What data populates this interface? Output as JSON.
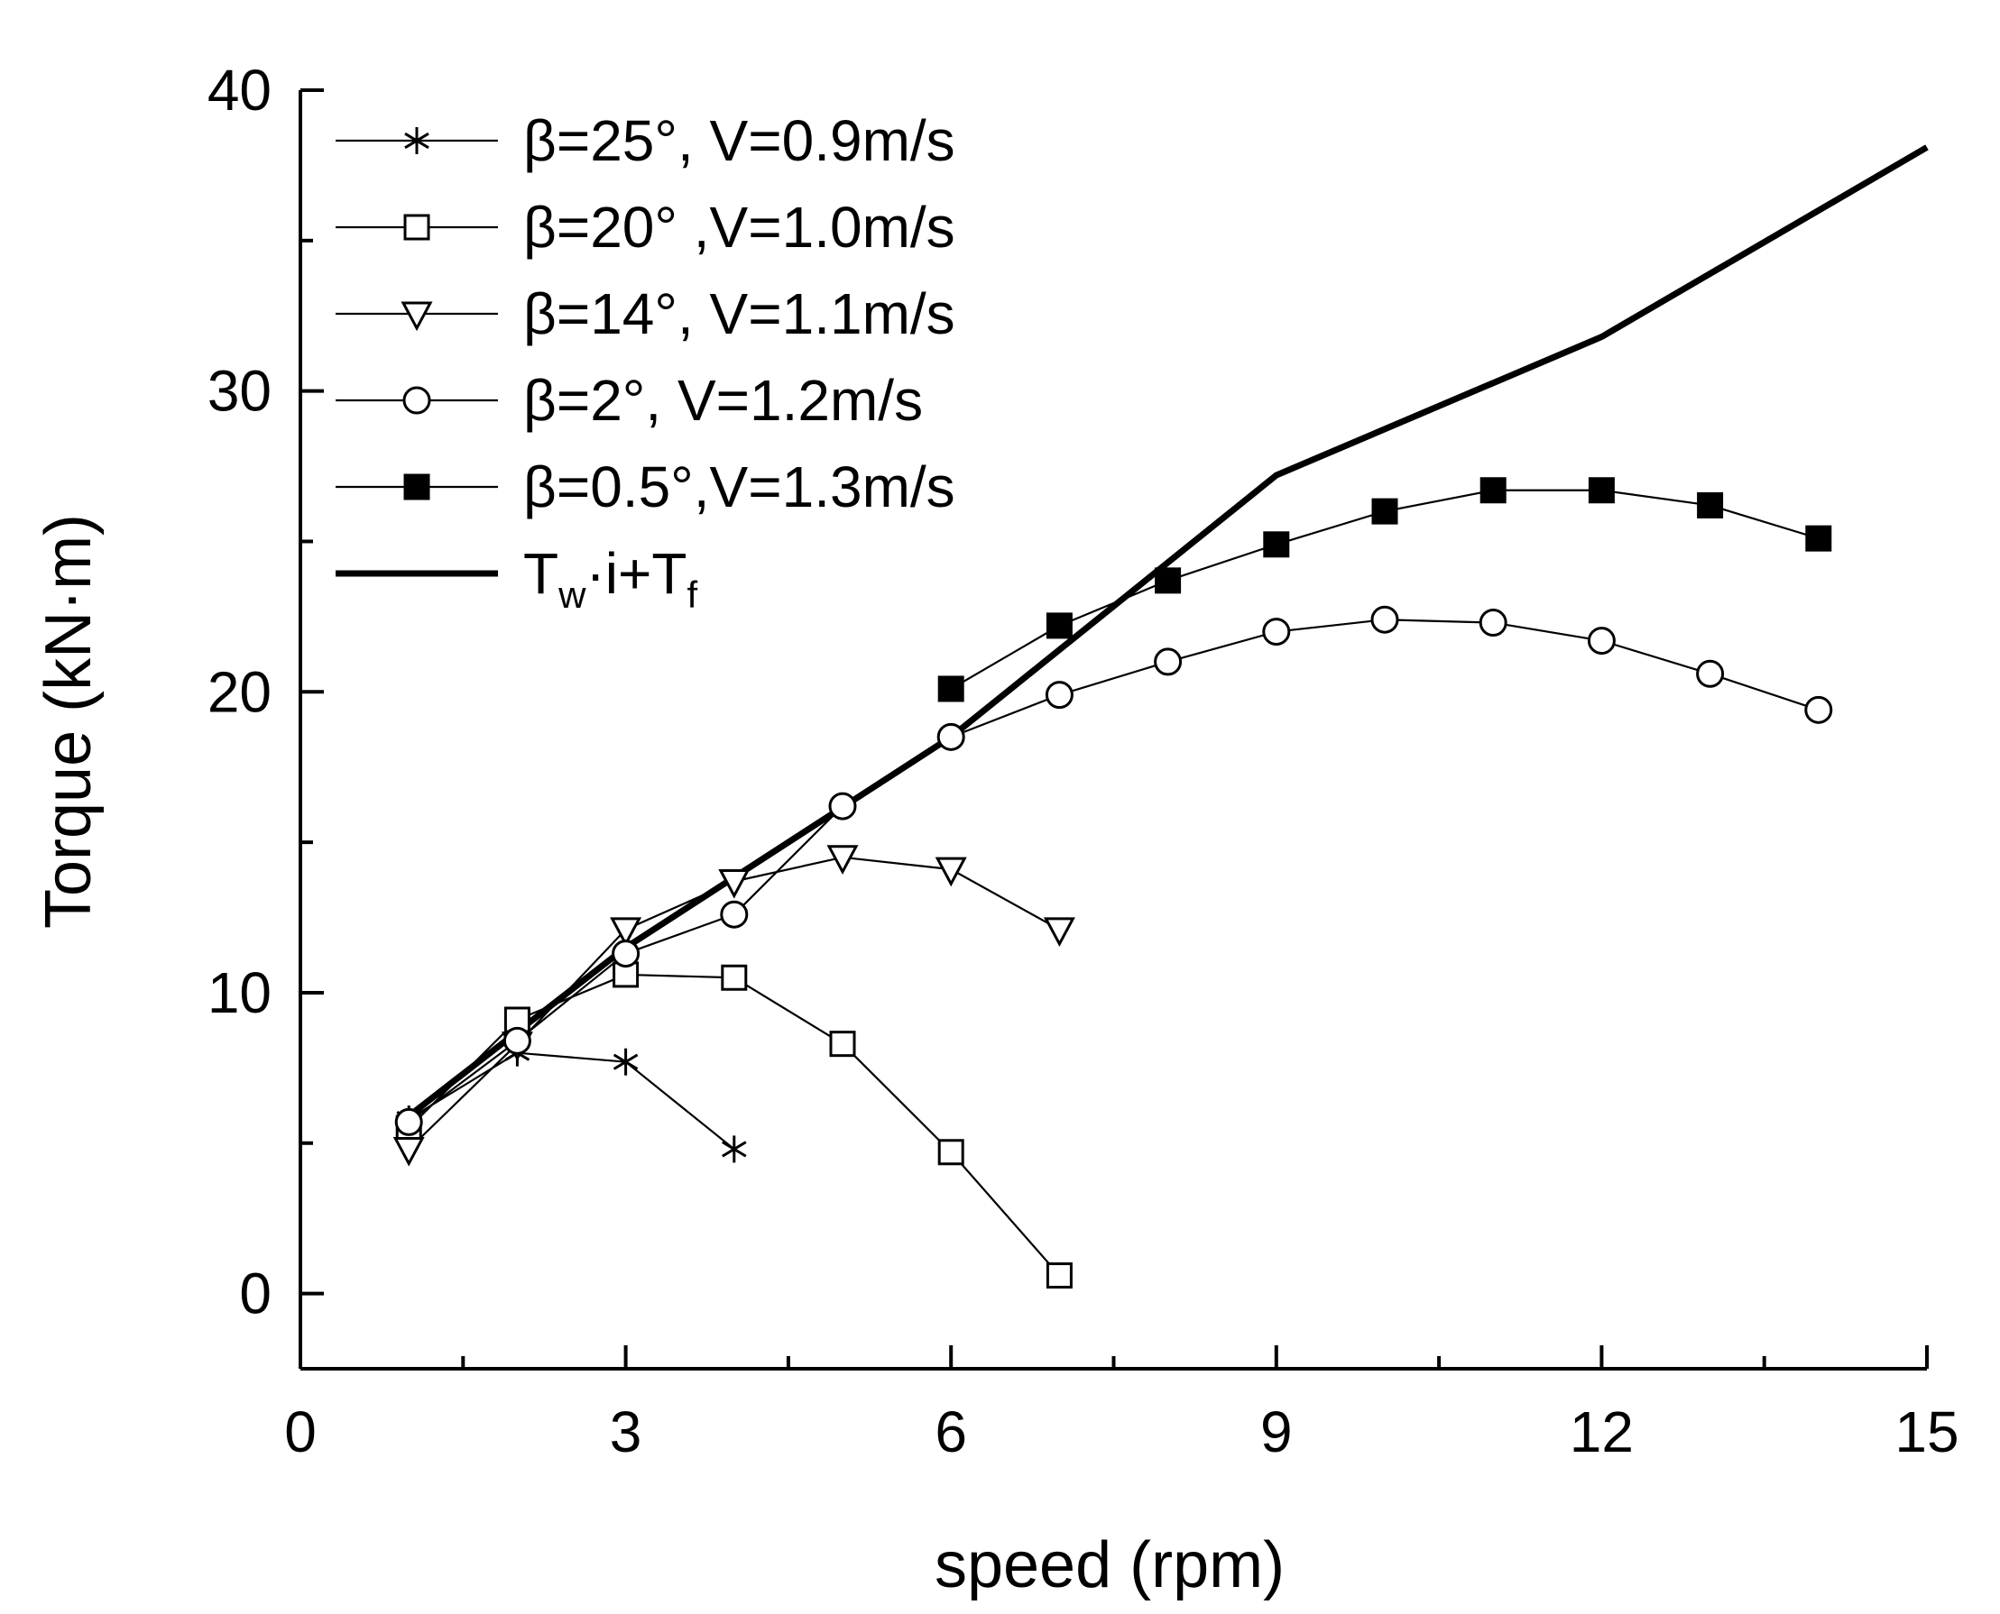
{
  "chart_data": {
    "type": "line",
    "title": "",
    "xlabel": "speed (rpm)",
    "ylabel": "Torque (kN·m)",
    "xlim": [
      0,
      15
    ],
    "ylim": [
      -2.5,
      40
    ],
    "xticks": [
      0,
      3,
      6,
      9,
      12,
      15
    ],
    "yticks": [
      0,
      10,
      20,
      30,
      40
    ],
    "x_minor_step": 1.5,
    "y_minor_step": 5,
    "grid": false,
    "legend_position": "top-left",
    "series": [
      {
        "name": "β=25°, V=0.9m/s",
        "marker": "asterisk",
        "x": [
          1,
          2,
          3,
          4
        ],
        "values": [
          5.8,
          8.0,
          7.7,
          4.8
        ]
      },
      {
        "name": "β=20° ,V=1.0m/s",
        "marker": "open-square",
        "x": [
          1,
          2,
          3,
          4,
          5,
          6,
          7
        ],
        "values": [
          5.5,
          9.1,
          10.6,
          10.5,
          8.3,
          4.7,
          0.6
        ]
      },
      {
        "name": "β=14°, V=1.1m/s",
        "marker": "open-triangle-down",
        "x": [
          1,
          2,
          3,
          4,
          5,
          6,
          7
        ],
        "values": [
          4.8,
          8.3,
          12.1,
          13.7,
          14.5,
          14.1,
          12.1
        ]
      },
      {
        "name": "β=2°, V=1.2m/s",
        "marker": "open-circle",
        "x": [
          1,
          2,
          3,
          4,
          5,
          6,
          7,
          8,
          9,
          10,
          11,
          12,
          13,
          14
        ],
        "values": [
          5.7,
          8.4,
          11.3,
          12.6,
          16.2,
          18.5,
          19.9,
          21.0,
          22.0,
          22.4,
          22.3,
          21.7,
          20.6,
          19.4
        ]
      },
      {
        "name": "β=0.5°,V=1.3m/s",
        "marker": "filled-square",
        "x": [
          6,
          7,
          8,
          9,
          10,
          11,
          12,
          13,
          14
        ],
        "values": [
          20.1,
          22.2,
          23.7,
          24.9,
          26.0,
          26.7,
          26.7,
          26.2,
          25.1
        ]
      },
      {
        "name": "Tw·i+Tf",
        "marker": "none",
        "style": "thick-line",
        "x": [
          1,
          3,
          6,
          9,
          12,
          15
        ],
        "values": [
          5.9,
          11.5,
          18.5,
          27.2,
          31.8,
          38.1
        ],
        "legend_parts": [
          "T",
          "w",
          "·i+T",
          "f"
        ]
      }
    ]
  }
}
